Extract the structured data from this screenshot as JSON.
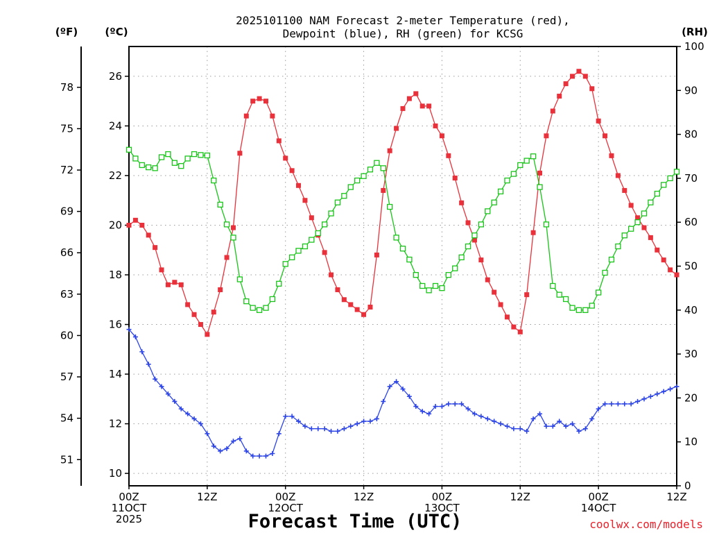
{
  "chart_data": {
    "type": "line",
    "title_lines": [
      "2025101100 NAM Forecast 2-meter Temperature (red),",
      "Dewpoint (blue), RH (green) for KCSG"
    ],
    "xlabel": "Forecast Time (UTC)",
    "credit": "coolwx.com/models",
    "left_axis_f_label": "(ºF)",
    "left_axis_c_label": "(ºC)",
    "right_axis_label": "(RH)",
    "x_range_hours": [
      0,
      84
    ],
    "celsius_range": [
      9.5,
      27.2
    ],
    "rh_range": [
      0,
      100
    ],
    "x_ticks": [
      {
        "hour": 0,
        "lines": [
          "00Z",
          "11OCT",
          "2025"
        ]
      },
      {
        "hour": 12,
        "lines": [
          "12Z"
        ]
      },
      {
        "hour": 24,
        "lines": [
          "00Z",
          "12OCT"
        ]
      },
      {
        "hour": 36,
        "lines": [
          "12Z"
        ]
      },
      {
        "hour": 48,
        "lines": [
          "00Z",
          "13OCT"
        ]
      },
      {
        "hour": 60,
        "lines": [
          "12Z"
        ]
      },
      {
        "hour": 72,
        "lines": [
          "00Z",
          "14OCT"
        ]
      },
      {
        "hour": 84,
        "lines": [
          "12Z"
        ]
      }
    ],
    "celsius_ticks": [
      "10",
      "12",
      "14",
      "16",
      "18",
      "20",
      "22",
      "24",
      "26"
    ],
    "fahrenheit_ticks": [
      "51",
      "54",
      "57",
      "60",
      "63",
      "66",
      "69",
      "72",
      "75",
      "78"
    ],
    "rh_ticks": [
      "0",
      "10",
      "20",
      "30",
      "40",
      "50",
      "60",
      "70",
      "80",
      "90",
      "100"
    ],
    "grid": true,
    "series": [
      {
        "name": "Temperature",
        "unit": "C",
        "color": "#e8313a",
        "marker": "filled-square",
        "x": [
          0,
          1,
          2,
          3,
          4,
          5,
          6,
          7,
          8,
          9,
          10,
          11,
          12,
          13,
          14,
          15,
          16,
          17,
          18,
          19,
          20,
          21,
          22,
          23,
          24,
          25,
          26,
          27,
          28,
          29,
          30,
          31,
          32,
          33,
          34,
          35,
          36,
          37,
          38,
          39,
          40,
          41,
          42,
          43,
          44,
          45,
          46,
          47,
          48,
          49,
          50,
          51,
          52,
          53,
          54,
          55,
          56,
          57,
          58,
          59,
          60,
          61,
          62,
          63,
          64,
          65,
          66,
          67,
          68,
          69,
          70,
          71,
          72,
          73,
          74,
          75,
          76,
          77,
          78,
          79,
          80,
          81,
          82,
          83,
          84
        ],
        "values": [
          20.0,
          20.2,
          20.0,
          19.6,
          19.1,
          18.2,
          17.6,
          17.7,
          17.6,
          16.8,
          16.4,
          16.0,
          15.6,
          16.5,
          17.4,
          18.7,
          19.9,
          22.9,
          24.4,
          25.0,
          25.1,
          25.0,
          24.4,
          23.4,
          22.7,
          22.2,
          21.6,
          21.0,
          20.3,
          19.6,
          18.9,
          18.0,
          17.4,
          17.0,
          16.8,
          16.6,
          16.4,
          16.7,
          18.8,
          21.4,
          23.0,
          23.9,
          24.7,
          25.1,
          25.3,
          24.8,
          24.8,
          24.0,
          23.6,
          22.8,
          21.9,
          20.9,
          20.1,
          19.4,
          18.6,
          17.8,
          17.3,
          16.8,
          16.3,
          15.9,
          15.7,
          17.2,
          19.7,
          22.1,
          23.6,
          24.6,
          25.2,
          25.7,
          26.0,
          26.2,
          26.0,
          25.5,
          24.2,
          23.6,
          22.8,
          22.0,
          21.4,
          20.8,
          20.3,
          19.9,
          19.5,
          19.0,
          18.6,
          18.2,
          18.0
        ]
      },
      {
        "name": "Dewpoint",
        "unit": "C",
        "color": "#2c44e6",
        "marker": "plus",
        "x": [
          0,
          1,
          2,
          3,
          4,
          5,
          6,
          7,
          8,
          9,
          10,
          11,
          12,
          13,
          14,
          15,
          16,
          17,
          18,
          19,
          20,
          21,
          22,
          23,
          24,
          25,
          26,
          27,
          28,
          29,
          30,
          31,
          32,
          33,
          34,
          35,
          36,
          37,
          38,
          39,
          40,
          41,
          42,
          43,
          44,
          45,
          46,
          47,
          48,
          49,
          50,
          51,
          52,
          53,
          54,
          55,
          56,
          57,
          58,
          59,
          60,
          61,
          62,
          63,
          64,
          65,
          66,
          67,
          68,
          69,
          70,
          71,
          72,
          73,
          74,
          75,
          76,
          77,
          78,
          79,
          80,
          81,
          82,
          83,
          84
        ],
        "values": [
          15.8,
          15.5,
          14.9,
          14.4,
          13.8,
          13.5,
          13.2,
          12.9,
          12.6,
          12.4,
          12.2,
          12.0,
          11.6,
          11.1,
          10.9,
          11.0,
          11.3,
          11.4,
          10.9,
          10.7,
          10.7,
          10.7,
          10.8,
          11.6,
          12.3,
          12.3,
          12.1,
          11.9,
          11.8,
          11.8,
          11.8,
          11.7,
          11.7,
          11.8,
          11.9,
          12.0,
          12.1,
          12.1,
          12.2,
          12.9,
          13.5,
          13.7,
          13.4,
          13.1,
          12.7,
          12.5,
          12.4,
          12.7,
          12.7,
          12.8,
          12.8,
          12.8,
          12.6,
          12.4,
          12.3,
          12.2,
          12.1,
          12.0,
          11.9,
          11.8,
          11.8,
          11.7,
          12.2,
          12.4,
          11.9,
          11.9,
          12.1,
          11.9,
          12.0,
          11.7,
          11.8,
          12.2,
          12.6,
          12.8,
          12.8,
          12.8,
          12.8,
          12.8,
          12.9,
          13.0,
          13.1,
          13.2,
          13.3,
          13.4,
          13.5
        ]
      },
      {
        "name": "RH",
        "unit": "%",
        "color": "#18c418",
        "marker": "open-square",
        "x": [
          0,
          1,
          2,
          3,
          4,
          5,
          6,
          7,
          8,
          9,
          10,
          11,
          12,
          13,
          14,
          15,
          16,
          17,
          18,
          19,
          20,
          21,
          22,
          23,
          24,
          25,
          26,
          27,
          28,
          29,
          30,
          31,
          32,
          33,
          34,
          35,
          36,
          37,
          38,
          39,
          40,
          41,
          42,
          43,
          44,
          45,
          46,
          47,
          48,
          49,
          50,
          51,
          52,
          53,
          54,
          55,
          56,
          57,
          58,
          59,
          60,
          61,
          62,
          63,
          64,
          65,
          66,
          67,
          68,
          69,
          70,
          71,
          72,
          73,
          74,
          75,
          76,
          77,
          78,
          79,
          80,
          81,
          82,
          83,
          84
        ],
        "values": [
          76.5,
          74.5,
          73.0,
          72.5,
          72.3,
          74.8,
          75.5,
          73.5,
          72.8,
          74.5,
          75.5,
          75.3,
          75.2,
          69.5,
          64.0,
          59.5,
          56.5,
          47.0,
          42.0,
          40.5,
          40.0,
          40.5,
          42.5,
          46.0,
          50.5,
          52.0,
          53.5,
          54.5,
          56.0,
          57.5,
          59.5,
          62.0,
          64.5,
          66.0,
          68.0,
          69.5,
          70.5,
          72.0,
          73.5,
          72.3,
          63.5,
          56.5,
          54.0,
          51.5,
          48.0,
          45.5,
          44.5,
          45.5,
          45.0,
          48.0,
          49.5,
          52.0,
          54.5,
          57.0,
          59.5,
          62.5,
          64.5,
          67.0,
          69.5,
          71.0,
          73.0,
          74.0,
          75.0,
          68.0,
          59.5,
          45.5,
          43.5,
          42.5,
          40.5,
          40.0,
          40.0,
          41.0,
          44.0,
          48.5,
          51.5,
          54.5,
          57.0,
          58.5,
          60.0,
          62.0,
          64.5,
          66.5,
          68.5,
          70.0,
          71.5
        ]
      }
    ]
  }
}
